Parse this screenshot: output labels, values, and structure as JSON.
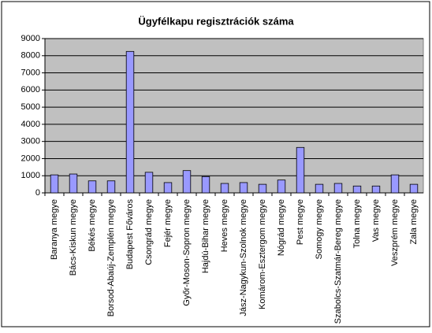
{
  "chart_data": {
    "type": "bar",
    "title": "Ügyfélkapu regisztrációk száma",
    "categories": [
      "Baranya megye",
      "Bács-Kiskun megye",
      "Békés megye",
      "Borsod-Abaúj-Zemplén megye",
      "Budapest Főváros",
      "Csongrád megye",
      "Fejér megye",
      "Győr-Moson-Sopron megye",
      "Hajdú-Bihar megye",
      "Heves megye",
      "Jász-Nagykun-Szolnok megye",
      "Komárom-Esztergom megye",
      "Nógrád megye",
      "Pest megye",
      "Somogy megye",
      "Szabolcs-Szatmár-Bereg megye",
      "Tolna megye",
      "Vas megye",
      "Veszprém megye",
      "Zala megye"
    ],
    "values": [
      1050,
      1100,
      700,
      700,
      8250,
      1200,
      600,
      1300,
      950,
      550,
      600,
      500,
      750,
      2650,
      500,
      550,
      400,
      400,
      1050,
      500
    ],
    "color": "#9999ff",
    "ylim": [
      0,
      9000
    ],
    "yticks": [
      0,
      1000,
      2000,
      3000,
      4000,
      5000,
      6000,
      7000,
      8000,
      9000
    ],
    "grid": true
  }
}
